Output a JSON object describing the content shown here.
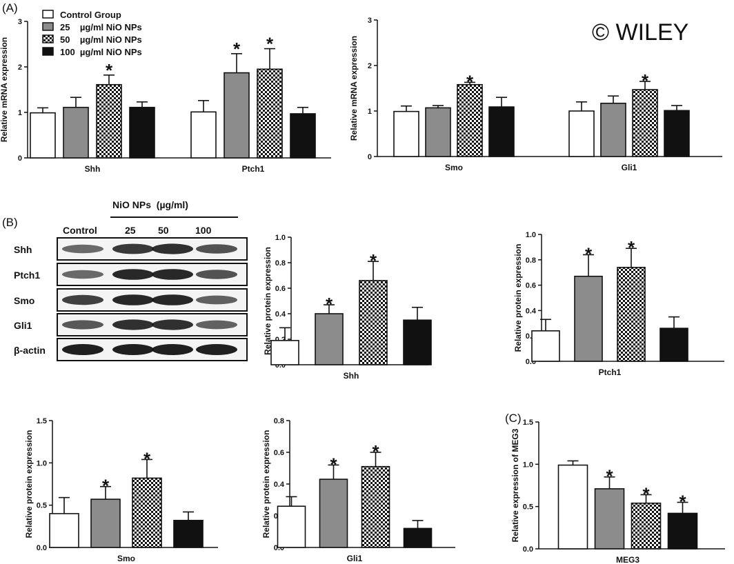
{
  "panel_labels": [
    "(A)",
    "(B)",
    "(C)"
  ],
  "watermark": "© WILEY",
  "legend": [
    {
      "label": "Control Group",
      "style": "white"
    },
    {
      "label": "25    µg/ml NiO NPs",
      "style": "gray"
    },
    {
      "label": "50    µg/ml NiO NPs",
      "style": "checker"
    },
    {
      "label": "100  µg/ml NiO NPs",
      "style": "black"
    }
  ],
  "western_blot": {
    "header": "NiO NPs  (µg/ml)",
    "lanes": [
      "Control",
      "25",
      "50",
      "100"
    ],
    "bands": [
      "Shh",
      "Ptch1",
      "Smo",
      "Gli1",
      "β-actin"
    ]
  },
  "chart_data": [
    {
      "id": "mrna1",
      "type": "bar",
      "ylabel": "Relative mRNA expression",
      "ylim": [
        0,
        3
      ],
      "yticks": [
        "0",
        "1",
        "2",
        "3"
      ],
      "categories": [
        "Shh",
        "Ptch1"
      ],
      "series": [
        {
          "values": [
            0.99,
            1.01
          ],
          "errors": [
            0.11,
            0.25
          ],
          "style": "white"
        },
        {
          "values": [
            1.11,
            1.87
          ],
          "errors": [
            0.22,
            0.42
          ],
          "style": "gray"
        },
        {
          "values": [
            1.61,
            1.95
          ],
          "errors": [
            0.21,
            0.45
          ],
          "style": "checker"
        },
        {
          "values": [
            1.11,
            0.97
          ],
          "errors": [
            0.12,
            0.14
          ],
          "style": "black"
        }
      ],
      "significance": [
        [
          false,
          false
        ],
        [
          false,
          true
        ],
        [
          true,
          true
        ],
        [
          false,
          false
        ]
      ]
    },
    {
      "id": "mrna2",
      "type": "bar",
      "ylabel": "Relative mRNA expression",
      "ylim": [
        0,
        3
      ],
      "yticks": [
        "0",
        "1",
        "2",
        "3"
      ],
      "categories": [
        "Smo",
        "Gli1"
      ],
      "series": [
        {
          "values": [
            0.99,
            1.0
          ],
          "errors": [
            0.12,
            0.2
          ],
          "style": "white"
        },
        {
          "values": [
            1.07,
            1.17
          ],
          "errors": [
            0.05,
            0.16
          ],
          "style": "gray"
        },
        {
          "values": [
            1.58,
            1.47
          ],
          "errors": [
            0.05,
            0.18
          ],
          "style": "checker"
        },
        {
          "values": [
            1.09,
            1.01
          ],
          "errors": [
            0.21,
            0.11
          ],
          "style": "black"
        }
      ],
      "significance": [
        [
          false,
          false
        ],
        [
          false,
          false
        ],
        [
          true,
          true
        ],
        [
          false,
          false
        ]
      ]
    },
    {
      "id": "prot_shh",
      "type": "bar",
      "ylabel": "Relative protein expression",
      "ylim": [
        0,
        1.0
      ],
      "yticks": [
        "0.0",
        "0.2",
        "0.4",
        "0.6",
        "0.8",
        "1.0"
      ],
      "categories": [
        "Shh"
      ],
      "series": [
        {
          "values": [
            0.19
          ],
          "errors": [
            0.1
          ],
          "style": "white"
        },
        {
          "values": [
            0.4
          ],
          "errors": [
            0.07
          ],
          "style": "gray"
        },
        {
          "values": [
            0.66
          ],
          "errors": [
            0.15
          ],
          "style": "checker"
        },
        {
          "values": [
            0.35
          ],
          "errors": [
            0.1
          ],
          "style": "black"
        }
      ],
      "significance": [
        [
          false
        ],
        [
          true
        ],
        [
          true
        ],
        [
          false
        ]
      ]
    },
    {
      "id": "prot_ptch1",
      "type": "bar",
      "ylabel": "Relative protein expression",
      "ylim": [
        0,
        1.0
      ],
      "yticks": [
        "0.0",
        "0.2",
        "0.4",
        "0.6",
        "0.8",
        "1.0"
      ],
      "categories": [
        "Ptch1"
      ],
      "series": [
        {
          "values": [
            0.24
          ],
          "errors": [
            0.09
          ],
          "style": "white"
        },
        {
          "values": [
            0.67
          ],
          "errors": [
            0.17
          ],
          "style": "gray"
        },
        {
          "values": [
            0.74
          ],
          "errors": [
            0.15
          ],
          "style": "checker"
        },
        {
          "values": [
            0.26
          ],
          "errors": [
            0.09
          ],
          "style": "black"
        }
      ],
      "significance": [
        [
          false
        ],
        [
          true
        ],
        [
          true
        ],
        [
          false
        ]
      ]
    },
    {
      "id": "prot_smo",
      "type": "bar",
      "ylabel": "Relative protein expression",
      "ylim": [
        0,
        1.5
      ],
      "yticks": [
        "0.0",
        "0.5",
        "1.0",
        "1.5"
      ],
      "categories": [
        "Smo"
      ],
      "series": [
        {
          "values": [
            0.4
          ],
          "errors": [
            0.19
          ],
          "style": "white"
        },
        {
          "values": [
            0.57
          ],
          "errors": [
            0.15
          ],
          "style": "gray"
        },
        {
          "values": [
            0.82
          ],
          "errors": [
            0.22
          ],
          "style": "checker"
        },
        {
          "values": [
            0.32
          ],
          "errors": [
            0.1
          ],
          "style": "black"
        }
      ],
      "significance": [
        [
          false
        ],
        [
          true
        ],
        [
          true
        ],
        [
          false
        ]
      ]
    },
    {
      "id": "prot_gli1",
      "type": "bar",
      "ylabel": "Relative protein expression",
      "ylim": [
        0,
        0.8
      ],
      "yticks": [
        "0.0",
        "0.2",
        "0.4",
        "0.6",
        "0.8"
      ],
      "categories": [
        "Gli1"
      ],
      "series": [
        {
          "values": [
            0.26
          ],
          "errors": [
            0.06
          ],
          "style": "white"
        },
        {
          "values": [
            0.43
          ],
          "errors": [
            0.09
          ],
          "style": "gray"
        },
        {
          "values": [
            0.51
          ],
          "errors": [
            0.09
          ],
          "style": "checker"
        },
        {
          "values": [
            0.12
          ],
          "errors": [
            0.05
          ],
          "style": "black"
        }
      ],
      "significance": [
        [
          false
        ],
        [
          true
        ],
        [
          true
        ],
        [
          false
        ]
      ]
    },
    {
      "id": "meg3",
      "type": "bar",
      "ylabel": "Relative  expression of MEG3",
      "ylim": [
        0,
        1.5
      ],
      "yticks": [
        "0.0",
        "0.5",
        "1.0",
        "1.5"
      ],
      "categories": [
        "MEG3"
      ],
      "series": [
        {
          "values": [
            0.99
          ],
          "errors": [
            0.05
          ],
          "style": "white"
        },
        {
          "values": [
            0.71
          ],
          "errors": [
            0.14
          ],
          "style": "gray"
        },
        {
          "values": [
            0.54
          ],
          "errors": [
            0.1
          ],
          "style": "checker"
        },
        {
          "values": [
            0.42
          ],
          "errors": [
            0.13
          ],
          "style": "black"
        }
      ],
      "significance": [
        [
          false
        ],
        [
          true
        ],
        [
          true
        ],
        [
          true
        ]
      ]
    }
  ]
}
